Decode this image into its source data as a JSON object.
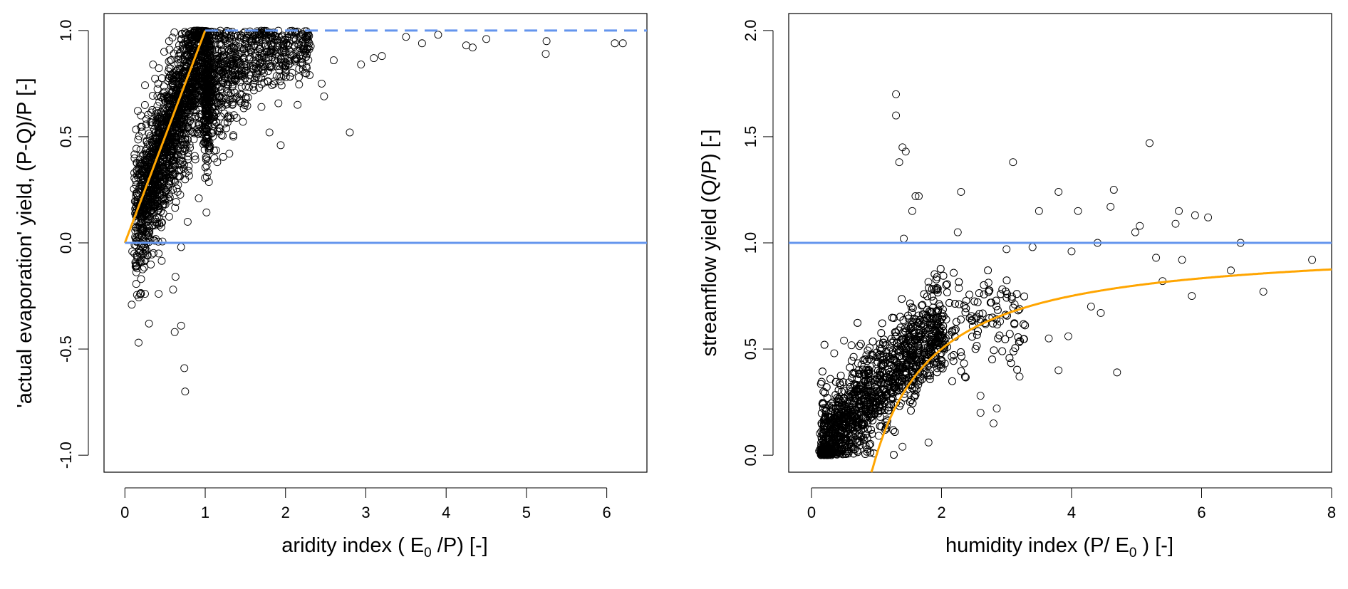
{
  "chart_data": [
    {
      "type": "scatter",
      "xlabel": "aridity index ( E0 /P) [-]",
      "xlabel_parts": [
        "aridity index ( E",
        "0",
        " /P) [-]"
      ],
      "ylabel": "'actual evaporation' yield, (P-Q)/P [-]",
      "xlim": [
        -0.26,
        6.5
      ],
      "ylim": [
        -1.08,
        1.08
      ],
      "xticks": [
        0,
        1,
        2,
        3,
        4,
        5,
        6
      ],
      "xtick_labels": [
        "0",
        "1",
        "2",
        "3",
        "4",
        "5",
        "6"
      ],
      "yticks": [
        -1,
        -0.5,
        0,
        0.5,
        1
      ],
      "ytick_labels": [
        "-1.0",
        "-0.5",
        "0.0",
        "0.5",
        "1.0"
      ],
      "grid": false,
      "reference_lines": [
        {
          "name": "energy-limit",
          "color": "#FFA500",
          "style": "solid",
          "x": [
            0,
            1
          ],
          "y": [
            0,
            1
          ]
        },
        {
          "name": "water-limit",
          "color": "#6495ED",
          "style": "dashed",
          "x": [
            1,
            6.5
          ],
          "y": [
            1,
            1
          ]
        },
        {
          "name": "zero-line",
          "color": "#6495ED",
          "style": "solid",
          "x": [
            0,
            6.5
          ],
          "y": [
            0,
            0
          ]
        }
      ],
      "points": [
        [
          0.17,
          -0.47
        ],
        [
          0.3,
          -0.38
        ],
        [
          0.62,
          -0.42
        ],
        [
          0.7,
          -0.39
        ],
        [
          0.74,
          -0.59
        ],
        [
          0.75,
          -0.7
        ],
        [
          0.2,
          -0.24
        ],
        [
          0.25,
          -0.24
        ],
        [
          0.42,
          -0.24
        ],
        [
          0.6,
          -0.22
        ],
        [
          0.63,
          -0.16
        ],
        [
          0.15,
          -0.12
        ],
        [
          0.18,
          -0.09
        ],
        [
          0.28,
          -0.06
        ],
        [
          0.42,
          -0.05
        ],
        [
          0.7,
          -0.02
        ],
        [
          2.8,
          0.52
        ],
        [
          1.94,
          0.46
        ],
        [
          1.8,
          0.52
        ],
        [
          2.15,
          0.65
        ],
        [
          2.48,
          0.69
        ],
        [
          1.7,
          0.64
        ],
        [
          6.1,
          0.94
        ],
        [
          6.2,
          0.94
        ],
        [
          5.25,
          0.95
        ],
        [
          5.24,
          0.89
        ],
        [
          4.25,
          0.93
        ],
        [
          4.33,
          0.92
        ],
        [
          4.5,
          0.96
        ],
        [
          3.7,
          0.94
        ],
        [
          3.9,
          0.98
        ],
        [
          2.94,
          0.84
        ],
        [
          3.2,
          0.88
        ],
        [
          3.5,
          0.97
        ],
        [
          2.6,
          0.86
        ],
        [
          0.55,
          0.95
        ],
        [
          0.7,
          0.96
        ],
        [
          0.35,
          0.84
        ],
        [
          0.2,
          0.6
        ],
        [
          1.3,
          0.42
        ],
        [
          1.35,
          0.5
        ],
        [
          1.15,
          0.38
        ],
        [
          1.02,
          0.31
        ],
        [
          0.92,
          0.21
        ],
        [
          1.47,
          0.57
        ],
        [
          2.45,
          0.75
        ],
        [
          2.3,
          0.79
        ],
        [
          3.1,
          0.87
        ],
        [
          2.0,
          0.84
        ],
        [
          2.2,
          0.9
        ],
        [
          1.6,
          0.75
        ]
      ],
      "core_cloud": {
        "count": 2600,
        "x_range": [
          0.1,
          2.3
        ],
        "trend": "y = min(x, 1) - 0.05 for x<1; y = 0.7 + 0.25*(1 - exp(-(x-1)*2)) for x>=1",
        "spread": 0.16
      }
    },
    {
      "type": "scatter",
      "xlabel": "humidity index (P/ E0 ) [-]",
      "xlabel_parts": [
        "humidity index (P/ E",
        "0",
        " ) [-]"
      ],
      "ylabel": "streamflow yield (Q/P) [-]",
      "xlim": [
        -0.35,
        8.0
      ],
      "ylim": [
        -0.08,
        2.08
      ],
      "xticks": [
        0,
        2,
        4,
        6,
        8
      ],
      "xtick_labels": [
        "0",
        "2",
        "4",
        "6",
        "8"
      ],
      "yticks": [
        0,
        0.5,
        1,
        1.5,
        2
      ],
      "ytick_labels": [
        "0.0",
        "0.5",
        "1.0",
        "1.5",
        "2.0"
      ],
      "grid": false,
      "reference_lines": [
        {
          "name": "unit-line",
          "color": "#6495ED",
          "style": "solid",
          "x": [
            -0.35,
            8
          ],
          "y": [
            1,
            1
          ]
        },
        {
          "name": "budyko-curve",
          "color": "#FFA500",
          "style": "solid",
          "function": "y = 1 - 1/x",
          "x_range": [
            0.92,
            8
          ]
        }
      ],
      "points": [
        [
          1.3,
          1.7
        ],
        [
          1.3,
          1.6
        ],
        [
          1.4,
          1.45
        ],
        [
          1.45,
          1.43
        ],
        [
          1.35,
          1.38
        ],
        [
          3.1,
          1.38
        ],
        [
          5.2,
          1.47
        ],
        [
          1.6,
          1.22
        ],
        [
          1.65,
          1.22
        ],
        [
          2.3,
          1.24
        ],
        [
          3.8,
          1.24
        ],
        [
          4.65,
          1.25
        ],
        [
          1.55,
          1.15
        ],
        [
          3.5,
          1.15
        ],
        [
          4.1,
          1.15
        ],
        [
          4.6,
          1.17
        ],
        [
          5.65,
          1.15
        ],
        [
          5.9,
          1.13
        ],
        [
          6.1,
          1.12
        ],
        [
          5.6,
          1.09
        ],
        [
          5.05,
          1.08
        ],
        [
          4.98,
          1.05
        ],
        [
          2.25,
          1.05
        ],
        [
          1.42,
          1.02
        ],
        [
          6.6,
          1.0
        ],
        [
          7.7,
          0.92
        ],
        [
          6.45,
          0.87
        ],
        [
          6.95,
          0.77
        ],
        [
          5.85,
          0.75
        ],
        [
          4.7,
          0.39
        ],
        [
          3.8,
          0.4
        ],
        [
          3.2,
          0.37
        ],
        [
          2.8,
          0.15
        ],
        [
          2.6,
          0.2
        ],
        [
          2.85,
          0.22
        ],
        [
          1.8,
          0.06
        ],
        [
          1.4,
          0.04
        ],
        [
          3.4,
          0.98
        ],
        [
          3.0,
          0.97
        ],
        [
          4.0,
          0.96
        ],
        [
          4.4,
          1.0
        ],
        [
          5.3,
          0.93
        ],
        [
          5.7,
          0.92
        ],
        [
          5.4,
          0.82
        ],
        [
          4.3,
          0.7
        ],
        [
          4.45,
          0.67
        ],
        [
          3.65,
          0.55
        ],
        [
          3.95,
          0.56
        ],
        [
          2.9,
          0.63
        ],
        [
          0.35,
          0.48
        ],
        [
          0.5,
          0.54
        ],
        [
          2.6,
          0.28
        ]
      ],
      "core_cloud": {
        "count": 2600,
        "x_range": [
          0.15,
          3.3
        ],
        "trend": "y = 0.32*x - 0.02 for x<1.8; tapering toward 0.65",
        "spread": 0.11
      }
    }
  ]
}
